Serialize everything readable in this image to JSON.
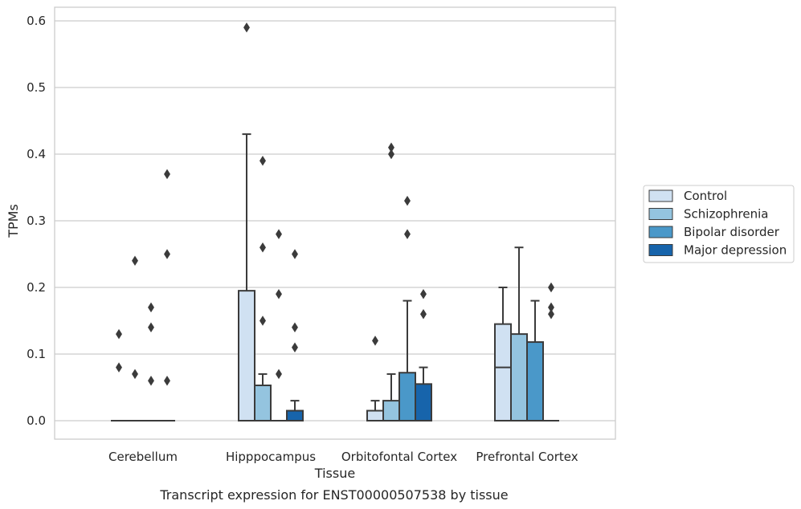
{
  "caption": "Transcript expression for ENST00000507538 by tissue",
  "chart_data": {
    "type": "boxplot",
    "xlabel": "Tissue",
    "ylabel": "TPMs",
    "ylim": [
      -0.028,
      0.62
    ],
    "yticks": [
      "0.0",
      "0.1",
      "0.2",
      "0.3",
      "0.4",
      "0.5",
      "0.6"
    ],
    "grid": true,
    "legend_position": "right",
    "categories": [
      "Cerebellum",
      "Hipppocampus",
      "Orbitofontal Cortex",
      "Prefrontal Cortex"
    ],
    "series": [
      {
        "name": "Control",
        "color": "#d0e1f2",
        "boxes": [
          {
            "q1": 0,
            "median": 0,
            "q3": 0,
            "whisker_low": 0,
            "whisker_high": 0,
            "outliers": [
              0.13,
              0.08
            ]
          },
          {
            "q1": 0,
            "median": 0,
            "q3": 0.195,
            "whisker_low": 0,
            "whisker_high": 0.43,
            "outliers": [
              0.59
            ]
          },
          {
            "q1": 0,
            "median": 0,
            "q3": 0.015,
            "whisker_low": 0,
            "whisker_high": 0.03,
            "outliers": [
              0.12
            ]
          },
          {
            "q1": 0,
            "median": 0.08,
            "q3": 0.145,
            "whisker_low": 0,
            "whisker_high": 0.2,
            "outliers": []
          }
        ]
      },
      {
        "name": "Schizophrenia",
        "color": "#94c4df",
        "boxes": [
          {
            "q1": 0,
            "median": 0,
            "q3": 0,
            "whisker_low": 0,
            "whisker_high": 0,
            "outliers": [
              0.24,
              0.07
            ]
          },
          {
            "q1": 0,
            "median": 0,
            "q3": 0.053,
            "whisker_low": 0,
            "whisker_high": 0.07,
            "outliers": [
              0.39,
              0.26,
              0.15
            ]
          },
          {
            "q1": 0,
            "median": 0,
            "q3": 0.03,
            "whisker_low": 0,
            "whisker_high": 0.07,
            "outliers": [
              0.41,
              0.4
            ]
          },
          {
            "q1": 0,
            "median": 0,
            "q3": 0.13,
            "whisker_low": 0,
            "whisker_high": 0.26,
            "outliers": []
          }
        ]
      },
      {
        "name": "Bipolar disorder",
        "color": "#4a98c9",
        "boxes": [
          {
            "q1": 0,
            "median": 0,
            "q3": 0,
            "whisker_low": 0,
            "whisker_high": 0,
            "outliers": [
              0.17,
              0.14,
              0.06
            ]
          },
          {
            "q1": 0,
            "median": 0,
            "q3": 0,
            "whisker_low": 0,
            "whisker_high": 0,
            "outliers": [
              0.28,
              0.19,
              0.07
            ]
          },
          {
            "q1": 0,
            "median": 0,
            "q3": 0.072,
            "whisker_low": 0,
            "whisker_high": 0.18,
            "outliers": [
              0.33,
              0.28
            ]
          },
          {
            "q1": 0,
            "median": 0,
            "q3": 0.118,
            "whisker_low": 0,
            "whisker_high": 0.18,
            "outliers": []
          }
        ]
      },
      {
        "name": "Major depression",
        "color": "#1764ab",
        "boxes": [
          {
            "q1": 0,
            "median": 0,
            "q3": 0,
            "whisker_low": 0,
            "whisker_high": 0,
            "outliers": [
              0.37,
              0.25,
              0.06
            ]
          },
          {
            "q1": 0,
            "median": 0,
            "q3": 0.015,
            "whisker_low": 0,
            "whisker_high": 0.03,
            "outliers": [
              0.25,
              0.14,
              0.11
            ]
          },
          {
            "q1": 0,
            "median": 0,
            "q3": 0.055,
            "whisker_low": 0,
            "whisker_high": 0.08,
            "outliers": [
              0.19,
              0.16
            ]
          },
          {
            "q1": 0,
            "median": 0,
            "q3": 0,
            "whisker_low": 0,
            "whisker_high": 0,
            "outliers": [
              0.2,
              0.17,
              0.16
            ]
          }
        ]
      }
    ]
  }
}
